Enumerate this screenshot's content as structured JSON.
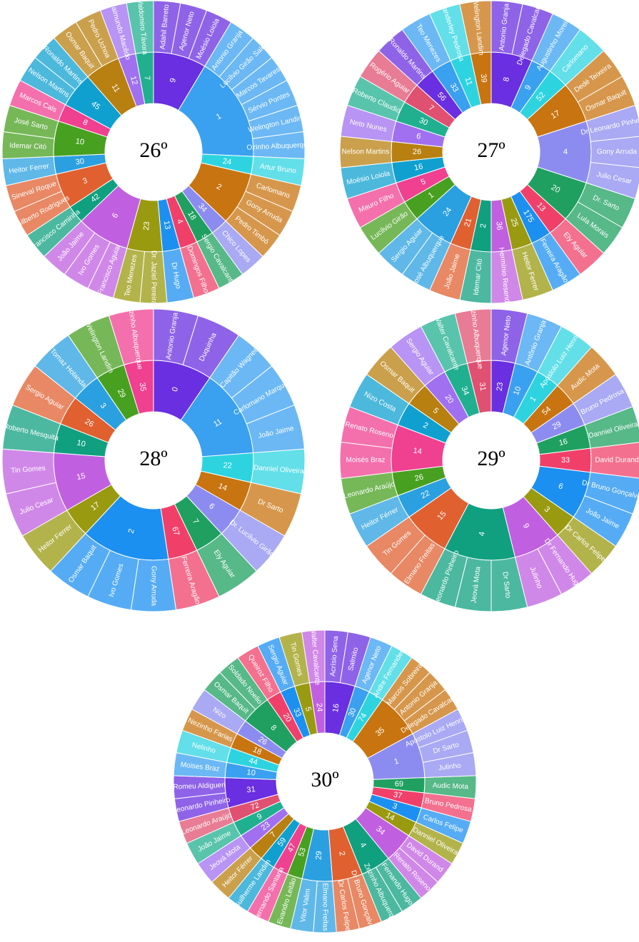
{
  "palette": [
    "#6a2fe0",
    "#3aa0f0",
    "#2dd4e0",
    "#c87410",
    "#8c8cf0",
    "#1fa060",
    "#f0406a",
    "#1c90f0",
    "#9a9a10",
    "#c060e0",
    "#10a080",
    "#e06030",
    "#2aa0e0",
    "#48a020",
    "#f04090",
    "#10a0d0",
    "#b88010",
    "#a070f0",
    "#20b090",
    "#e05070"
  ],
  "chart_data": [
    {
      "type": "sunburst",
      "title": "26º",
      "groups": [
        {
          "name": 9,
          "children": [
            "Adahil Barreto",
            "Agenor Neto",
            "Moésio Loiola"
          ]
        },
        {
          "name": 1,
          "children": [
            "Antonio Granja",
            "Lucílvio Girão Sales",
            "Marcos Tavares",
            "Sérvio Pontes",
            "Welington Landim",
            "Ozinho Albuquerque"
          ]
        },
        {
          "name": 24,
          "children": [
            "Artur Bruno"
          ]
        },
        {
          "name": 2,
          "children": [
            "Carlomano",
            "Gony Arruda",
            "Pedro Timbó"
          ]
        },
        {
          "name": 34,
          "children": [
            "Chico Lopes"
          ]
        },
        {
          "name": 18,
          "children": [
            "Sergio Cavalcante"
          ]
        },
        {
          "name": 4,
          "children": [
            "Domingos Filho"
          ]
        },
        {
          "name": 13,
          "children": [
            "Dr Hugo"
          ]
        },
        {
          "name": 23,
          "children": [
            "Dr. Jaziel Pereira",
            "Teo Menezes"
          ]
        },
        {
          "name": 6,
          "children": [
            "Francisco Aguiar",
            "Ivo Gomes",
            "João Jaime"
          ]
        },
        {
          "name": 42,
          "children": [
            "Francisco Caminha"
          ]
        },
        {
          "name": 3,
          "children": [
            "Gilberto Rodrigues",
            "Sineval Roque"
          ]
        },
        {
          "name": 30,
          "children": [
            "Heitor Ferrer"
          ]
        },
        {
          "name": 10,
          "children": [
            "Idemar Citó",
            "José Sarto"
          ]
        },
        {
          "name": 8,
          "children": [
            "Marcos Cals"
          ]
        },
        {
          "name": 45,
          "children": [
            "Nelson Martins",
            "Ronaldo Martins"
          ]
        },
        {
          "name": 11,
          "children": [
            "Osmar Baquit",
            "Pedro Uchoa"
          ]
        },
        {
          "name": 12,
          "children": [
            "Raimundo Macêdo"
          ]
        },
        {
          "name": 7,
          "children": [
            "Valdomiro Távora"
          ]
        }
      ]
    },
    {
      "type": "sunburst",
      "title": "27º",
      "groups": [
        {
          "name": 8,
          "children": [
            "Antonio Granja",
            "Delegado Cavalcante"
          ]
        },
        {
          "name": 9,
          "children": [
            "Augustinho Moreira"
          ]
        },
        {
          "name": 52,
          "children": [
            "Carlomano"
          ]
        },
        {
          "name": 17,
          "children": [
            "Dedé Teixeira",
            "Osmar Baquit"
          ]
        },
        {
          "name": 4,
          "children": [
            "Dr Leonardo Pinheiro",
            "Gony Arruda",
            "Julio Cesar"
          ]
        },
        {
          "name": 20,
          "children": [
            "Dr. Sarto",
            "Lula Morais"
          ]
        },
        {
          "name": 13,
          "children": [
            "Ely Aguiar"
          ]
        },
        {
          "name": 175,
          "children": [
            "Ferreira Aragão"
          ]
        },
        {
          "name": 25,
          "children": [
            "Heitor Ferrer"
          ]
        },
        {
          "name": 36,
          "children": [
            "Hermínio Resende"
          ]
        },
        {
          "name": 2,
          "children": [
            "Idemar Citó"
          ]
        },
        {
          "name": 21,
          "children": [
            "João Jaime"
          ]
        },
        {
          "name": 24,
          "children": [
            "José Albuquerque",
            "Sergio Aguiar"
          ]
        },
        {
          "name": 1,
          "children": [
            "Lucílvio Girão"
          ]
        },
        {
          "name": 5,
          "children": [
            "Mauro Filho"
          ]
        },
        {
          "name": 16,
          "children": [
            "Moésio Loiola"
          ]
        },
        {
          "name": 26,
          "children": [
            "Nelson Martins"
          ]
        },
        {
          "name": 6,
          "children": [
            "Neto Nunes"
          ]
        },
        {
          "name": 30,
          "children": [
            "Roberto Claudio"
          ]
        },
        {
          "name": 7,
          "children": [
            "Rogério Aguiar"
          ]
        },
        {
          "name": 56,
          "children": [
            "Ronaldo Martins"
          ]
        },
        {
          "name": 33,
          "children": [
            "Teo Menezes"
          ]
        },
        {
          "name": 11,
          "children": [
            "Vanderley Pedrosa"
          ]
        },
        {
          "name": 39,
          "children": [
            "Welington Landim"
          ]
        }
      ]
    },
    {
      "type": "sunburst",
      "title": "28º",
      "groups": [
        {
          "name": 0,
          "children": [
            "Antonio Granja",
            "Duquinha"
          ]
        },
        {
          "name": 11,
          "children": [
            "Capitão Wagner",
            "Carlomano Marques",
            "João Jaime"
          ]
        },
        {
          "name": 22,
          "children": [
            "Danniel Oliveira"
          ]
        },
        {
          "name": 14,
          "children": [
            "Dr Sarto"
          ]
        },
        {
          "name": 6,
          "children": [
            "Dr. Lucílvio Girão"
          ]
        },
        {
          "name": 7,
          "children": [
            "Ely Aguiar"
          ]
        },
        {
          "name": 67,
          "children": [
            "Ferreira Aragão"
          ]
        },
        {
          "name": 2,
          "children": [
            "Gony Arruda",
            "Ivo Gomes",
            "Osmar Baquit"
          ]
        },
        {
          "name": 17,
          "children": [
            "Heitor Ferrer"
          ]
        },
        {
          "name": 15,
          "children": [
            "Julio Cesar",
            "Tin Gomes"
          ]
        },
        {
          "name": 10,
          "children": [
            "Roberto Mesquita"
          ]
        },
        {
          "name": 26,
          "children": [
            "Sergio Aguiar"
          ]
        },
        {
          "name": 3,
          "children": [
            "Tomaz Holanda"
          ]
        },
        {
          "name": 29,
          "children": [
            "Welington Landim"
          ]
        },
        {
          "name": 35,
          "children": [
            "Zezinho Albuquerque"
          ]
        }
      ]
    },
    {
      "type": "sunburst",
      "title": "29º",
      "groups": [
        {
          "name": 23,
          "children": [
            "Agenor Neto"
          ]
        },
        {
          "name": 10,
          "children": [
            "Antônio Granja"
          ]
        },
        {
          "name": 1,
          "children": [
            "Apóstolo Luiz Henrique"
          ]
        },
        {
          "name": 54,
          "children": [
            "Audic Mota"
          ]
        },
        {
          "name": 29,
          "children": [
            "Bruno Pedrosa"
          ]
        },
        {
          "name": 16,
          "children": [
            "Danniel Oliveira"
          ]
        },
        {
          "name": 33,
          "children": [
            "David Durand"
          ]
        },
        {
          "name": 6,
          "children": [
            "Dr Bruno Gonçalves",
            "João Jaime"
          ]
        },
        {
          "name": 3,
          "children": [
            "Dr Carlos Felipe"
          ]
        },
        {
          "name": 9,
          "children": [
            "Dr Fernando Hugo",
            "Julinho"
          ]
        },
        {
          "name": 4,
          "children": [
            "Dr Sarto",
            "Jeová Mota",
            "Leonardo Pinheiro"
          ]
        },
        {
          "name": 15,
          "children": [
            "Elmano Freitas",
            "Tin Gomes"
          ]
        },
        {
          "name": 22,
          "children": [
            "Heitor Férrer"
          ]
        },
        {
          "name": 26,
          "children": [
            "Leonardo Araújo"
          ]
        },
        {
          "name": 14,
          "children": [
            "Moisés Braz",
            "Renato Roseno"
          ]
        },
        {
          "name": 2,
          "children": [
            "Nizo Costa"
          ]
        },
        {
          "name": 5,
          "children": [
            "Osmar Baquit"
          ]
        },
        {
          "name": 20,
          "children": [
            "Sergio Aguiar"
          ]
        },
        {
          "name": 34,
          "children": [
            "Walter Cavalcante"
          ]
        },
        {
          "name": 31,
          "children": [
            "Zezinho Albuquerque"
          ]
        }
      ]
    },
    {
      "type": "sunburst",
      "title": "30º",
      "groups": [
        {
          "name": 16,
          "children": [
            "Acrísio Sena",
            "Salmito"
          ]
        },
        {
          "name": 30,
          "children": [
            "Agenor Neto"
          ]
        },
        {
          "name": 74,
          "children": [
            "Andre Fernandes"
          ]
        },
        {
          "name": 35,
          "children": [
            "Marcos Sobreira",
            "Antonio Granja",
            "Delegado Cavalcante"
          ]
        },
        {
          "name": 1,
          "children": [
            "Apóstolo Luiz Henrique",
            "Dr Sarto",
            "Julinho"
          ]
        },
        {
          "name": 69,
          "children": [
            "Audic Mota"
          ]
        },
        {
          "name": 37,
          "children": [
            "Bruno Pedrosa"
          ]
        },
        {
          "name": 3,
          "children": [
            "Carlos Felipe"
          ]
        },
        {
          "name": 14,
          "children": [
            "Danniel Oliveira"
          ]
        },
        {
          "name": 34,
          "children": [
            "David Durand",
            "Renato Roseno"
          ]
        },
        {
          "name": 4,
          "children": [
            "Fernando Hugo",
            "Zezinho Albuquerque"
          ]
        },
        {
          "name": 2,
          "children": [
            "Dr Bruno Gonçalves",
            "Dr Carlos Felipe"
          ]
        },
        {
          "name": 29,
          "children": [
            "Elmano Freitas",
            "Vitor Valim"
          ]
        },
        {
          "name": 53,
          "children": [
            "Evandro Leitão"
          ]
        },
        {
          "name": 47,
          "children": [
            "Fernando Santana"
          ]
        },
        {
          "name": 59,
          "children": [
            "Guilherme Landim"
          ]
        },
        {
          "name": 7,
          "children": [
            "Heitor Férrer"
          ]
        },
        {
          "name": 23,
          "children": [
            "Jeová Mota"
          ]
        },
        {
          "name": 9,
          "children": [
            "João Jaime"
          ]
        },
        {
          "name": 72,
          "children": [
            "Leonardo Araújo"
          ]
        },
        {
          "name": 31,
          "children": [
            "Leonardo Pinheiro",
            "Romeu Aldigueri"
          ]
        },
        {
          "name": 10,
          "children": [
            "Moises Braz"
          ]
        },
        {
          "name": 44,
          "children": [
            "Nelinho"
          ]
        },
        {
          "name": 18,
          "children": [
            "Nezinho Farias"
          ]
        },
        {
          "name": 26,
          "children": [
            "Nizo"
          ]
        },
        {
          "name": 8,
          "children": [
            "Osmar Baquit",
            "Soldado Noelio"
          ]
        },
        {
          "name": 20,
          "children": [
            "Queiroz Filho"
          ]
        },
        {
          "name": 33,
          "children": [
            "Sergio Aguiar"
          ]
        },
        {
          "name": 5,
          "children": [
            "Tin Gomes"
          ]
        },
        {
          "name": 24,
          "children": [
            "Walter Cavalcante"
          ]
        }
      ]
    }
  ]
}
